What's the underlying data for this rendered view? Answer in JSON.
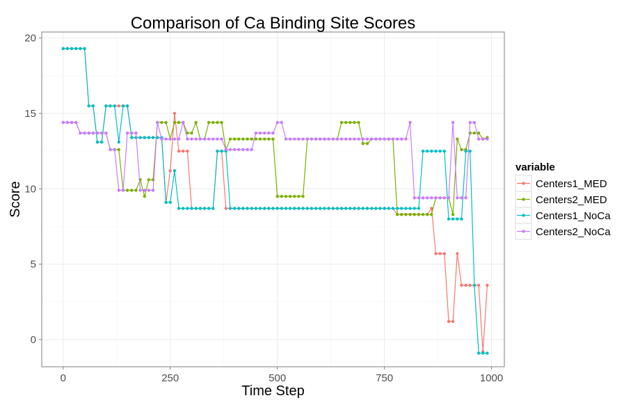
{
  "chart_data": {
    "type": "line",
    "title": "Comparison of Ca Binding Site Scores",
    "xlabel": "Time Step",
    "ylabel": "Score",
    "xlim": [
      -50,
      1030
    ],
    "ylim": [
      -1.8,
      20.4
    ],
    "xticks": [
      0,
      250,
      500,
      750,
      1000
    ],
    "yticks": [
      0,
      5,
      10,
      15,
      20
    ],
    "xtick_labels": [
      "0",
      "250",
      "500",
      "750",
      "1000"
    ],
    "ytick_labels": [
      "0",
      "5",
      "10",
      "15",
      "20"
    ],
    "grid": true,
    "legend": {
      "title": "variable",
      "position": "right"
    },
    "x": [
      0,
      10,
      20,
      30,
      40,
      50,
      60,
      70,
      80,
      90,
      100,
      110,
      120,
      130,
      140,
      150,
      160,
      170,
      180,
      190,
      200,
      210,
      220,
      230,
      240,
      250,
      260,
      270,
      280,
      290,
      300,
      310,
      320,
      330,
      340,
      350,
      360,
      370,
      380,
      390,
      400,
      410,
      420,
      430,
      440,
      450,
      460,
      470,
      480,
      490,
      500,
      510,
      520,
      530,
      540,
      550,
      560,
      570,
      580,
      590,
      600,
      610,
      620,
      630,
      640,
      650,
      660,
      670,
      680,
      690,
      700,
      710,
      720,
      730,
      740,
      750,
      760,
      770,
      780,
      790,
      800,
      810,
      820,
      830,
      840,
      850,
      860,
      870,
      880,
      890,
      900,
      910,
      920,
      930,
      940,
      950,
      960,
      970,
      980,
      990
    ],
    "series": [
      {
        "name": "Centers1_MED",
        "color": "#F8766D",
        "values": [
          19.3,
          19.3,
          19.3,
          19.3,
          19.3,
          19.3,
          15.5,
          15.5,
          13.1,
          13.1,
          15.5,
          15.5,
          15.5,
          15.5,
          15.5,
          15.5,
          13.4,
          13.4,
          13.4,
          13.4,
          13.4,
          13.4,
          13.4,
          13.4,
          9.1,
          11.2,
          15.0,
          12.5,
          12.5,
          12.5,
          8.7,
          8.7,
          8.7,
          8.7,
          8.7,
          8.7,
          12.5,
          12.5,
          8.7,
          8.7,
          8.7,
          8.7,
          8.7,
          8.7,
          8.7,
          8.7,
          8.7,
          8.7,
          8.7,
          8.7,
          8.7,
          8.7,
          8.7,
          8.7,
          8.7,
          8.7,
          8.7,
          8.7,
          8.7,
          8.7,
          8.7,
          8.7,
          8.7,
          8.7,
          8.7,
          8.7,
          8.7,
          8.7,
          8.7,
          8.7,
          8.7,
          8.7,
          8.7,
          8.7,
          8.7,
          8.7,
          8.7,
          8.7,
          8.3,
          8.3,
          8.3,
          8.3,
          8.3,
          8.3,
          8.3,
          8.3,
          8.7,
          5.7,
          5.7,
          5.7,
          1.2,
          1.2,
          5.7,
          3.6,
          3.6,
          3.6,
          3.6,
          3.6,
          -0.8,
          3.6
        ]
      },
      {
        "name": "Centers2_MED",
        "color": "#7CAE00",
        "values": [
          14.4,
          14.4,
          14.4,
          14.4,
          13.7,
          13.7,
          13.7,
          13.7,
          13.7,
          13.7,
          13.7,
          12.6,
          12.6,
          12.6,
          9.9,
          9.9,
          9.9,
          9.9,
          10.6,
          9.5,
          10.6,
          10.6,
          14.4,
          14.4,
          14.4,
          13.3,
          14.4,
          14.4,
          14.4,
          13.7,
          13.7,
          14.4,
          13.3,
          13.3,
          14.4,
          14.4,
          14.4,
          14.4,
          12.6,
          13.3,
          13.3,
          13.3,
          13.3,
          13.3,
          13.3,
          13.3,
          13.3,
          13.3,
          13.3,
          13.3,
          9.5,
          9.5,
          9.5,
          9.5,
          9.5,
          9.5,
          9.5,
          13.3,
          13.3,
          13.3,
          13.3,
          13.3,
          13.3,
          13.3,
          13.3,
          14.4,
          14.4,
          14.4,
          14.4,
          14.4,
          13.0,
          13.0,
          13.3,
          13.3,
          13.3,
          13.3,
          13.3,
          13.3,
          8.3,
          8.3,
          8.3,
          8.3,
          8.3,
          8.3,
          8.3,
          8.3,
          8.3,
          9.4,
          9.4,
          9.4,
          9.4,
          8.3,
          13.3,
          12.6,
          12.6,
          13.7,
          13.7,
          13.7,
          13.3,
          13.4
        ]
      },
      {
        "name": "Centers1_NoCa",
        "color": "#00BFC4",
        "values": [
          19.3,
          19.3,
          19.3,
          19.3,
          19.3,
          19.3,
          15.5,
          15.5,
          13.1,
          13.1,
          15.5,
          15.5,
          15.5,
          13.1,
          15.5,
          15.5,
          13.4,
          13.4,
          13.4,
          13.4,
          13.4,
          13.4,
          13.4,
          13.4,
          9.1,
          9.1,
          11.2,
          8.7,
          8.7,
          8.7,
          8.7,
          8.7,
          8.7,
          8.7,
          8.7,
          8.7,
          12.5,
          12.5,
          12.5,
          8.7,
          8.7,
          8.7,
          8.7,
          8.7,
          8.7,
          8.7,
          8.7,
          8.7,
          8.7,
          8.7,
          8.7,
          8.7,
          8.7,
          8.7,
          8.7,
          8.7,
          8.7,
          8.7,
          8.7,
          8.7,
          8.7,
          8.7,
          8.7,
          8.7,
          8.7,
          8.7,
          8.7,
          8.7,
          8.7,
          8.7,
          8.7,
          8.7,
          8.7,
          8.7,
          8.7,
          8.7,
          8.7,
          8.7,
          8.7,
          8.7,
          8.7,
          8.7,
          8.7,
          8.7,
          12.5,
          12.5,
          12.5,
          12.5,
          12.5,
          12.5,
          8.0,
          8.0,
          8.0,
          8.0,
          12.5,
          12.5,
          3.6,
          -0.9,
          -0.9,
          -0.9
        ]
      },
      {
        "name": "Centers2_NoCa",
        "color": "#C77CFF",
        "values": [
          14.4,
          14.4,
          14.4,
          14.4,
          13.7,
          13.7,
          13.7,
          13.7,
          13.7,
          13.7,
          13.7,
          12.6,
          12.6,
          9.9,
          9.9,
          13.7,
          13.7,
          13.7,
          9.9,
          9.9,
          9.9,
          9.9,
          14.4,
          13.3,
          13.3,
          13.3,
          13.3,
          13.3,
          14.4,
          13.3,
          13.3,
          13.3,
          13.3,
          13.3,
          13.3,
          13.3,
          13.3,
          13.3,
          12.6,
          12.6,
          12.6,
          12.6,
          12.6,
          12.6,
          12.6,
          13.7,
          13.7,
          13.7,
          13.7,
          13.7,
          14.4,
          14.4,
          13.3,
          13.3,
          13.3,
          13.3,
          13.3,
          13.3,
          13.3,
          13.3,
          13.3,
          13.3,
          13.3,
          13.3,
          13.3,
          13.3,
          13.3,
          13.3,
          13.3,
          13.3,
          13.3,
          13.3,
          13.3,
          13.3,
          13.3,
          13.3,
          13.3,
          13.3,
          13.3,
          13.3,
          13.3,
          14.4,
          9.4,
          9.4,
          9.4,
          9.4,
          9.4,
          9.4,
          9.4,
          9.4,
          9.4,
          14.4,
          9.4,
          9.4,
          9.4,
          14.4,
          14.4,
          13.3,
          13.3,
          13.3
        ]
      }
    ]
  }
}
